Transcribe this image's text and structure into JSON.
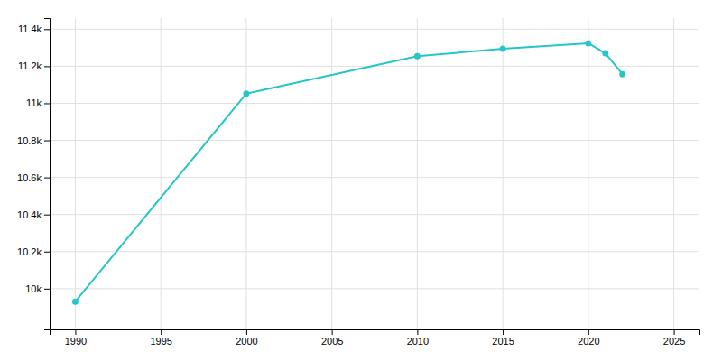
{
  "chart_data": {
    "type": "line",
    "x": [
      1990,
      2000,
      2010,
      2015,
      2020,
      2021,
      2022
    ],
    "values": [
      9930,
      11052,
      11254,
      11294,
      11324,
      11270,
      11157
    ],
    "color": "#26c6c6",
    "marker": "circle",
    "xlim": [
      1988.5,
      2026.5
    ],
    "ylim": [
      9780,
      11460
    ],
    "xticks": [
      1990,
      1995,
      2000,
      2005,
      2010,
      2015,
      2020,
      2025
    ],
    "yticks": [
      {
        "value": 10000,
        "label": "10k"
      },
      {
        "value": 10200,
        "label": "10.2k"
      },
      {
        "value": 10400,
        "label": "10.4k"
      },
      {
        "value": 10600,
        "label": "10.6k"
      },
      {
        "value": 10800,
        "label": "10.8k"
      },
      {
        "value": 11000,
        "label": "11k"
      },
      {
        "value": 11200,
        "label": "11.2k"
      },
      {
        "value": 11400,
        "label": "11.4k"
      }
    ],
    "grid": true
  }
}
